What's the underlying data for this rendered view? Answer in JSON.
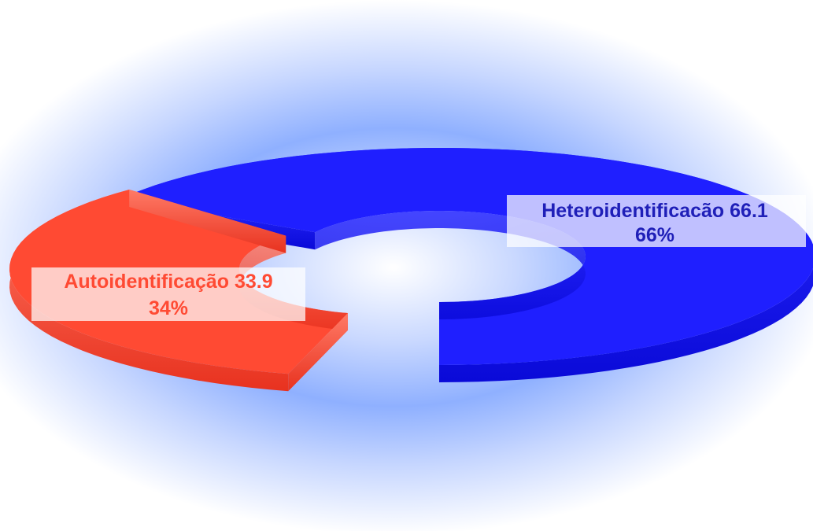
{
  "chart_data": {
    "type": "pie",
    "variant": "3d-donut",
    "title": "",
    "legend": "none",
    "slices": [
      {
        "name": "Autoidentificação",
        "value": 33.9,
        "percent_label": "34%",
        "color": "#ff4a33"
      },
      {
        "name": "Heteroidentificacão",
        "value": 66.1,
        "percent_label": "66%",
        "color": "#1f1fff"
      }
    ],
    "data_labels": [
      {
        "line1": "Autoidentificação 33.9",
        "line2": "34%",
        "color": "#ff4a33"
      },
      {
        "line1": "Heteroidentificacão 66.1",
        "line2": "66%",
        "color": "#1f1fb8"
      }
    ]
  }
}
